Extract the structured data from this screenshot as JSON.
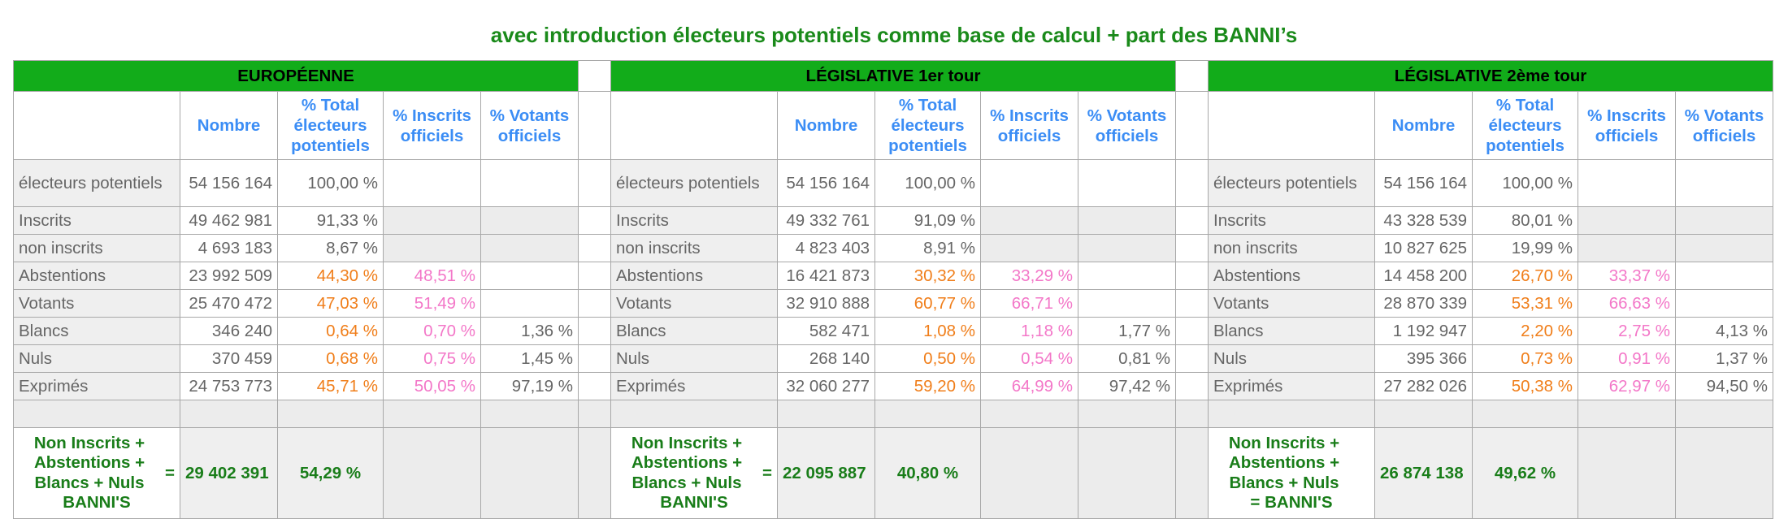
{
  "title": "avec introduction électeurs potentiels comme base de calcul + part des BANNI’s",
  "colors": {
    "header_green": "#12ac1a",
    "title_green": "#1a8a1a",
    "col_header_blue": "#3b8df5",
    "orange": "#f07e1a",
    "pink": "#f377c8"
  },
  "column_headers": [
    "Nombre",
    "% Total électeurs potentiels",
    "% Inscrits officiels",
    "% Votants officiels"
  ],
  "sections": [
    {
      "title": "EUROPÉENNE",
      "rows": [
        {
          "label": "électeurs potentiels",
          "nombre": "54 156 164",
          "pct_total": "100,00 %",
          "pct_inscrits": "",
          "pct_votants": ""
        },
        {
          "label": "Inscrits",
          "nombre": "49 462 981",
          "pct_total": "91,33 %",
          "pct_inscrits": "",
          "pct_votants": ""
        },
        {
          "label": "non inscrits",
          "nombre": "4 693 183",
          "pct_total": "8,67 %",
          "pct_inscrits": "",
          "pct_votants": ""
        },
        {
          "label": "Abstentions",
          "nombre": "23 992 509",
          "pct_total": "44,30 %",
          "pct_inscrits": "48,51 %",
          "pct_votants": ""
        },
        {
          "label": "Votants",
          "nombre": "25 470 472",
          "pct_total": "47,03 %",
          "pct_inscrits": "51,49 %",
          "pct_votants": ""
        },
        {
          "label": "Blancs",
          "nombre": "346 240",
          "pct_total": "0,64 %",
          "pct_inscrits": "0,70 %",
          "pct_votants": "1,36 %"
        },
        {
          "label": "Nuls",
          "nombre": "370 459",
          "pct_total": "0,68 %",
          "pct_inscrits": "0,75 %",
          "pct_votants": "1,45 %"
        },
        {
          "label": "Exprimés",
          "nombre": "24 753 773",
          "pct_total": "45,71 %",
          "pct_inscrits": "50,05 %",
          "pct_votants": "97,19 %"
        }
      ],
      "banni_label": "Non Inscrits + Abstentions + Blancs + Nuls",
      "banni_label_end": "BANNI'S",
      "banni_eq": "=",
      "banni_value": "29 402 391",
      "banni_pct": "54,29 %"
    },
    {
      "title": "LÉGISLATIVE 1er tour",
      "rows": [
        {
          "label": "électeurs potentiels",
          "nombre": "54 156 164",
          "pct_total": "100,00 %",
          "pct_inscrits": "",
          "pct_votants": ""
        },
        {
          "label": "Inscrits",
          "nombre": "49 332 761",
          "pct_total": "91,09 %",
          "pct_inscrits": "",
          "pct_votants": ""
        },
        {
          "label": "non inscrits",
          "nombre": "4 823 403",
          "pct_total": "8,91 %",
          "pct_inscrits": "",
          "pct_votants": ""
        },
        {
          "label": "Abstentions",
          "nombre": "16 421 873",
          "pct_total": "30,32 %",
          "pct_inscrits": "33,29 %",
          "pct_votants": ""
        },
        {
          "label": "Votants",
          "nombre": "32 910 888",
          "pct_total": "60,77 %",
          "pct_inscrits": "66,71 %",
          "pct_votants": ""
        },
        {
          "label": "Blancs",
          "nombre": "582 471",
          "pct_total": "1,08 %",
          "pct_inscrits": "1,18 %",
          "pct_votants": "1,77 %"
        },
        {
          "label": "Nuls",
          "nombre": "268 140",
          "pct_total": "0,50 %",
          "pct_inscrits": "0,54 %",
          "pct_votants": "0,81 %"
        },
        {
          "label": "Exprimés",
          "nombre": "32 060 277",
          "pct_total": "59,20 %",
          "pct_inscrits": "64,99 %",
          "pct_votants": "97,42 %"
        }
      ],
      "banni_label": "Non Inscrits + Abstentions + Blancs + Nuls",
      "banni_label_end": "BANNI'S",
      "banni_eq": "=",
      "banni_value": "22 095 887",
      "banni_pct": "40,80 %"
    },
    {
      "title": "LÉGISLATIVE 2ème tour",
      "rows": [
        {
          "label": "électeurs potentiels",
          "nombre": "54 156 164",
          "pct_total": "100,00 %",
          "pct_inscrits": "",
          "pct_votants": ""
        },
        {
          "label": "Inscrits",
          "nombre": "43 328 539",
          "pct_total": "80,01 %",
          "pct_inscrits": "",
          "pct_votants": ""
        },
        {
          "label": "non inscrits",
          "nombre": "10 827 625",
          "pct_total": "19,99 %",
          "pct_inscrits": "",
          "pct_votants": ""
        },
        {
          "label": "Abstentions",
          "nombre": "14 458 200",
          "pct_total": "26,70 %",
          "pct_inscrits": "33,37 %",
          "pct_votants": ""
        },
        {
          "label": "Votants",
          "nombre": "28 870 339",
          "pct_total": "53,31 %",
          "pct_inscrits": "66,63 %",
          "pct_votants": ""
        },
        {
          "label": "Blancs",
          "nombre": "1 192 947",
          "pct_total": "2,20 %",
          "pct_inscrits": "2,75 %",
          "pct_votants": "4,13 %"
        },
        {
          "label": "Nuls",
          "nombre": "395 366",
          "pct_total": "0,73 %",
          "pct_inscrits": "0,91 %",
          "pct_votants": "1,37 %"
        },
        {
          "label": "Exprimés",
          "nombre": "27 282 026",
          "pct_total": "50,38 %",
          "pct_inscrits": "62,97 %",
          "pct_votants": "94,50 %"
        }
      ],
      "banni_label": "Non Inscrits + Abstentions + Blancs + Nuls",
      "banni_label_end": "= BANNI'S",
      "banni_eq": "",
      "banni_value": "26 874 138",
      "banni_pct": "49,62 %"
    }
  ]
}
